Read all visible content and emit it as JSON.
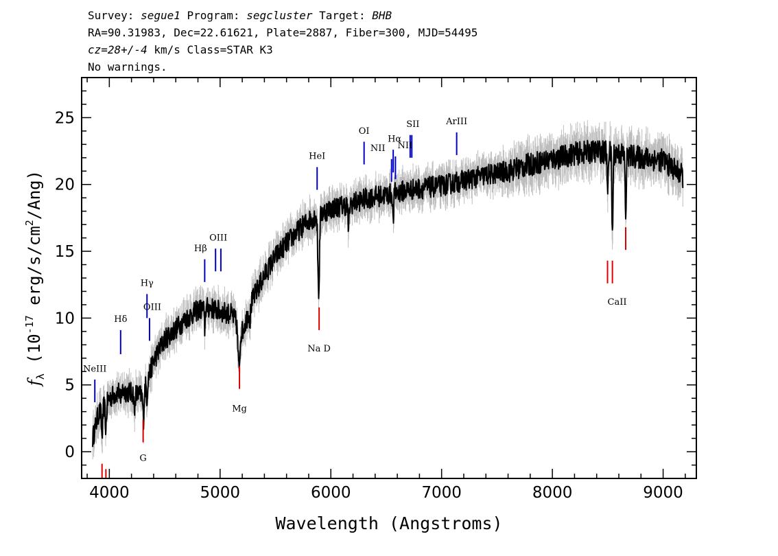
{
  "header": {
    "line1": {
      "survey_label": "Survey: ",
      "survey_value": "segue1",
      "program_label": " Program: ",
      "program_value": "segcluster",
      "target_label": " Target: ",
      "target_value": "BHB"
    },
    "line2": "RA=90.31983, Dec=22.61621, Plate=2887, Fiber=300, MJD=54495",
    "line3": {
      "cz_value": "cz=28+/-4",
      "rest": " km/s Class=STAR K3"
    },
    "line4": "No warnings."
  },
  "chart_data": {
    "type": "line",
    "title": "",
    "xlabel": "Wavelength (Angstroms)",
    "ylabel_parts": {
      "f": "f",
      "lambda": "λ",
      "open": " (10",
      "exp1": "-17",
      "mid": " erg/s/cm",
      "exp2": "2",
      "close": "/Ang)"
    },
    "xlim": [
      3750,
      9300
    ],
    "ylim": [
      -2,
      28
    ],
    "x_ticks": [
      4000,
      5000,
      6000,
      7000,
      8000,
      9000
    ],
    "x_tick_labels": [
      "4000",
      "5000",
      "6000",
      "7000",
      "8000",
      "9000"
    ],
    "y_ticks": [
      0,
      5,
      10,
      15,
      20,
      25
    ],
    "y_tick_labels": [
      "0",
      "5",
      "10",
      "15",
      "20",
      "25"
    ],
    "x_minor_step": 200,
    "y_minor_step": 1,
    "grid": false,
    "colors": {
      "flux": "#000000",
      "error": "#bdbdbd",
      "emission": "#0000cc",
      "absorption": "#dd0000",
      "model": "#000000"
    },
    "series": [
      {
        "role": "flux",
        "continuum_x": [
          3850,
          3900,
          4000,
          4100,
          4200,
          4300,
          4400,
          4500,
          4600,
          4700,
          4800,
          4900,
          5000,
          5100,
          5200,
          5300,
          5400,
          5500,
          5600,
          5700,
          5800,
          5900,
          6000,
          6100,
          6200,
          6300,
          6400,
          6500,
          6600,
          6700,
          6800,
          6900,
          7000,
          7100,
          7200,
          7400,
          7600,
          7800,
          8000,
          8200,
          8400,
          8600,
          8800,
          9000,
          9180
        ],
        "continuum_y": [
          1.0,
          2.8,
          4.0,
          4.6,
          4.4,
          4.2,
          6.8,
          8.4,
          9.2,
          10.0,
          10.6,
          10.8,
          10.5,
          10.3,
          9.0,
          11.5,
          13.2,
          14.6,
          15.6,
          16.5,
          17.3,
          17.8,
          18.2,
          18.4,
          18.6,
          18.9,
          19.1,
          19.2,
          19.4,
          19.6,
          19.7,
          19.8,
          19.9,
          20.1,
          20.3,
          20.7,
          21.0,
          21.5,
          21.9,
          22.3,
          22.5,
          22.3,
          22.0,
          21.8,
          20.6
        ],
        "absorption_lines": [
          {
            "x": 3934,
            "depth": 2.0,
            "width": 8
          },
          {
            "x": 3969,
            "depth": 1.8,
            "width": 8
          },
          {
            "x": 4101,
            "depth": 1.0,
            "width": 6
          },
          {
            "x": 4227,
            "depth": 1.4,
            "width": 6
          },
          {
            "x": 4308,
            "depth": 2.0,
            "width": 7
          },
          {
            "x": 4340,
            "depth": 1.2,
            "width": 6
          },
          {
            "x": 4861,
            "depth": 1.5,
            "width": 6
          },
          {
            "x": 5170,
            "depth": 3.2,
            "width": 12
          },
          {
            "x": 5270,
            "depth": 1.0,
            "width": 6
          },
          {
            "x": 5890,
            "depth": 5.8,
            "width": 10
          },
          {
            "x": 6160,
            "depth": 1.8,
            "width": 8
          },
          {
            "x": 6563,
            "depth": 2.2,
            "width": 6
          },
          {
            "x": 8498,
            "depth": 3.2,
            "width": 6
          },
          {
            "x": 8542,
            "depth": 6.2,
            "width": 7
          },
          {
            "x": 8662,
            "depth": 4.5,
            "width": 7
          }
        ],
        "noise": 0.8
      },
      {
        "role": "error",
        "note_free": true,
        "band_extra": 0.9
      }
    ],
    "lines": [
      {
        "label": "NeIII",
        "x": 3869,
        "kind": "emission",
        "y_top": 5.4,
        "y_bot": 3.7,
        "label_y": 6.0
      },
      {
        "label": "Hδ",
        "x": 4102,
        "kind": "emission",
        "y_top": 9.1,
        "y_bot": 7.3,
        "label_y": 9.7
      },
      {
        "label": "Hγ",
        "x": 4340,
        "kind": "emission",
        "y_top": 11.8,
        "y_bot": 10.0,
        "label_y": 12.4
      },
      {
        "label": "OIII",
        "x": 4363,
        "kind": "emission",
        "y_top": 10.0,
        "y_bot": 8.3,
        "label_y": 10.6,
        "label_dx": 4
      },
      {
        "label": "Hβ",
        "x": 4861,
        "kind": "emission",
        "y_top": 14.4,
        "y_bot": 12.7,
        "label_y": 15.0,
        "label_dx": -6
      },
      {
        "label": "OIII",
        "x": 4959,
        "kind": "emission",
        "y_top": 15.2,
        "y_bot": 13.5,
        "label_y": 15.8,
        "label_dx": 4
      },
      {
        "label": "",
        "x": 5007,
        "kind": "emission",
        "y_top": 15.2,
        "y_bot": 13.5
      },
      {
        "label": "HeI",
        "x": 5876,
        "kind": "emission",
        "y_top": 21.3,
        "y_bot": 19.6,
        "label_y": 21.9
      },
      {
        "label": "OI",
        "x": 6300,
        "kind": "emission",
        "y_top": 23.2,
        "y_bot": 21.5,
        "label_y": 23.8
      },
      {
        "label": "NII",
        "x": 6548,
        "kind": "emission",
        "y_top": 21.9,
        "y_bot": 20.2,
        "label_y": 22.5,
        "label_dx": -20
      },
      {
        "label": "Hα",
        "x": 6563,
        "kind": "emission",
        "y_top": 22.6,
        "y_bot": 20.9,
        "label_y": 23.2,
        "label_dx": 2
      },
      {
        "label": "NII",
        "x": 6583,
        "kind": "emission",
        "y_top": 22.1,
        "y_bot": 20.4,
        "label_y": 22.7,
        "label_dx": 14
      },
      {
        "label": "SII",
        "x": 6716,
        "kind": "emission",
        "y_top": 23.7,
        "y_bot": 22.0,
        "label_y": 24.3,
        "label_dx": 4
      },
      {
        "label": "",
        "x": 6731,
        "kind": "emission",
        "y_top": 23.7,
        "y_bot": 22.0
      },
      {
        "label": "ArIII",
        "x": 7136,
        "kind": "emission",
        "y_top": 23.9,
        "y_bot": 22.2,
        "label_y": 24.5
      },
      {
        "label": "",
        "x": 3934,
        "kind": "absorption",
        "y_top": -0.9,
        "y_bot": -2.6
      },
      {
        "label": "",
        "x": 3969,
        "kind": "absorption",
        "y_top": -1.3,
        "y_bot": -3.0
      },
      {
        "label": "G",
        "x": 4305,
        "kind": "absorption",
        "y_top": 2.4,
        "y_bot": 0.7,
        "label_y": -0.7
      },
      {
        "label": "Mg",
        "x": 5175,
        "kind": "absorption",
        "y_top": 6.4,
        "y_bot": 4.7,
        "label_y": 3.0
      },
      {
        "label": "Na D",
        "x": 5894,
        "kind": "absorption",
        "y_top": 10.8,
        "y_bot": 9.1,
        "label_y": 7.5
      },
      {
        "label": "CaII",
        "x": 8498,
        "kind": "absorption",
        "y_top": 14.3,
        "y_bot": 12.6,
        "label_y": 11.0,
        "label_dx": 14
      },
      {
        "label": "",
        "x": 8542,
        "kind": "absorption",
        "y_top": 14.3,
        "y_bot": 12.6
      },
      {
        "label": "",
        "x": 8662,
        "kind": "absorption",
        "y_top": 16.8,
        "y_bot": 15.1
      }
    ]
  }
}
